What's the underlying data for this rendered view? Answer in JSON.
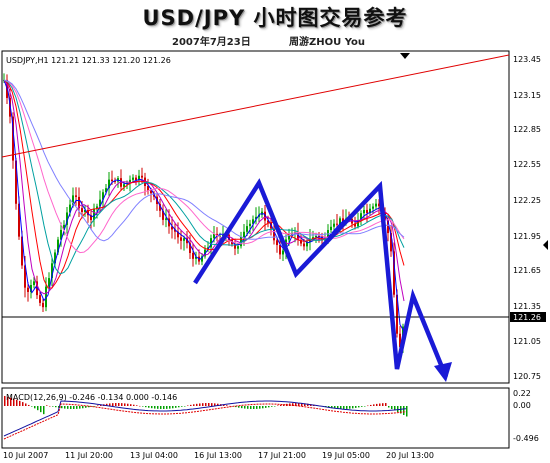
{
  "header": {
    "title": "USD/JPY 小时图交易参考",
    "date": "2007年7月23日",
    "author": "周游ZHOU You"
  },
  "main_chart": {
    "info": "USDJPY,H1  121.21 121.33 121.20 121.26",
    "price_axis_labels": [
      "123.45",
      "123.15",
      "122.85",
      "122.55",
      "122.25",
      "121.95",
      "121.65",
      "121.35",
      "121.26",
      "121.05",
      "120.75"
    ],
    "current_price": "121.26",
    "ylim": [
      120.7,
      123.5
    ]
  },
  "macd": {
    "info": "MACD(12,26,9) -0.246 -0.134 0.000 -0.146",
    "axis_labels": [
      "0.00",
      "0.22",
      "-0.496"
    ]
  },
  "time_axis_labels": [
    "10 Jul 2007",
    "11 Jul 20:00",
    "13 Jul 04:00",
    "16 Jul 13:00",
    "17 Jul 21:00",
    "19 Jul 05:00",
    "20 Jul 13:00"
  ],
  "colors": {
    "background": "#ffffff",
    "up_candle": "#00a000",
    "down_candle": "#d00000",
    "trendline": "#e00000",
    "pattern_arrow": "#1a1ad6",
    "ma_colors": [
      "#0000ff",
      "#c000c0",
      "#ff0000",
      "#00a0a0",
      "#ff66cc",
      "#8080ff"
    ],
    "macd_main": "#1010a0",
    "macd_signal": "#e00000"
  },
  "icons": [
    "chart-shift-marker-icon",
    "expand-arrow-icon"
  ]
}
